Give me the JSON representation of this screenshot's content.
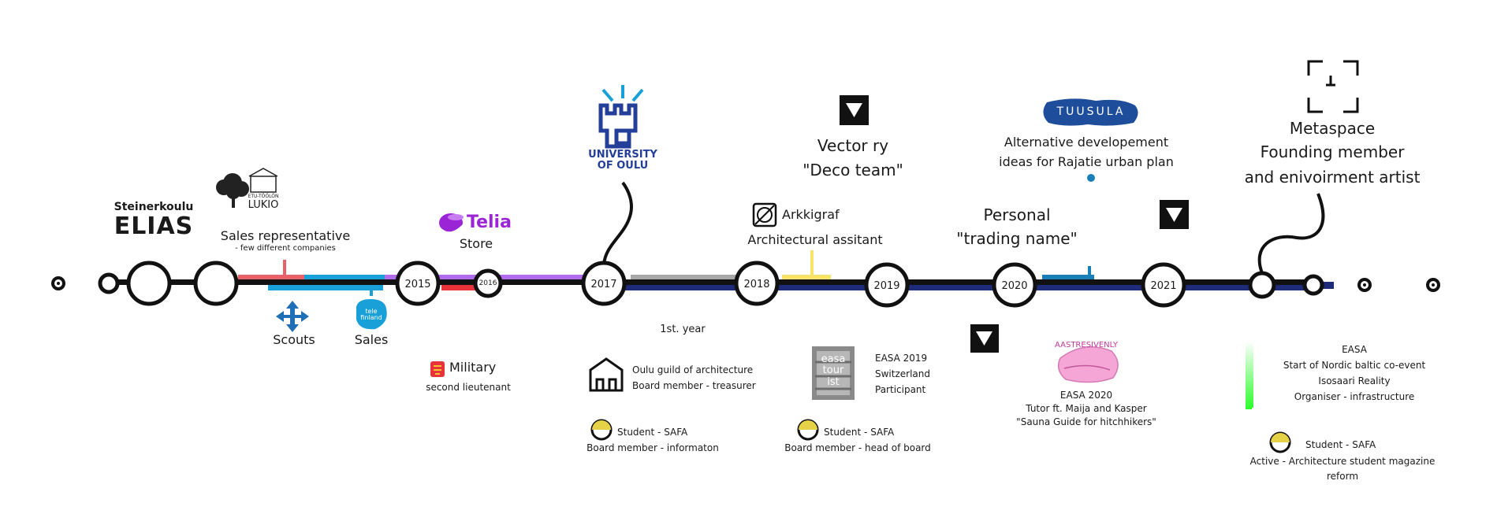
{
  "years": {
    "y2015": "2015",
    "y2016": "2016",
    "y2017": "2017",
    "y2018": "2018",
    "y2019": "2019",
    "y2020": "2020",
    "y2021": "2021"
  },
  "above": {
    "elias_line1": "Steinerkoulu",
    "elias_line2": "ELIAS",
    "lukio_line1": "ETU-TÖÖLÖN",
    "lukio_line2": "LUKIO",
    "sales_rep": "Sales representative",
    "sales_rep_sub": "- few different companies",
    "telia_logo": "Telia",
    "telia_store": "Store",
    "univ_line1": "UNIVERSITY",
    "univ_line2": "OF OULU",
    "vector_line1": "Vector ry",
    "vector_line2": "\"Deco team\"",
    "arkkigraf": "Arkkigraf",
    "arkkigraf_sub": "Architectural assitant",
    "personal_line1": "Personal",
    "personal_line2": "\"trading name\"",
    "tuusula_logo": "TUUSULA",
    "tuusula_line1": "Alternative developement",
    "tuusula_line2": "ideas for Rajatie urban plan",
    "metaspace_line1": "Metaspace",
    "metaspace_line2": "Founding member",
    "metaspace_line3": "and enivoirment artist"
  },
  "below": {
    "scouts": "Scouts",
    "telefinland_logo": "tele finland",
    "sales": "Sales",
    "military": "Military",
    "military_sub": "second lieutenant",
    "first_year": "1st. year",
    "oulu_guild_line1": "Oulu guild of architecture",
    "oulu_guild_line2": "Board member - treasurer",
    "safa1_line1": "Student - SAFA",
    "safa1_line2": "Board member - informaton",
    "easa2019_logo": "easa tour ist",
    "easa2019_line1": "EASA 2019",
    "easa2019_line2": "Switzerland",
    "easa2019_line3": "Participant",
    "safa2_line1": "Student - SAFA",
    "safa2_line2": "Board member - head of board",
    "easa2020_logo": "AASTRESIVENLY",
    "easa2020_line1": "EASA 2020",
    "easa2020_line2": "Tutor ft. Maija and Kasper",
    "easa2020_line3": "\"Sauna Guide for hitchhikers\"",
    "easa_nordic_line1": "EASA",
    "easa_nordic_line2": "Start of Nordic baltic  co-event",
    "easa_nordic_line3": "Isosaari Reality",
    "easa_nordic_line4": "Organiser - infrastructure",
    "safa3_line1": "Student - SAFA",
    "safa3_line2": "Active - Architecture student magazine",
    "safa3_line3": "reform"
  },
  "colors": {
    "timeline": "#111111",
    "navy": "#1d2b78",
    "red": "#e8333a",
    "salmon": "#e8606a",
    "cyan": "#1aa0d8",
    "purple": "#b26bea",
    "gray": "#a8a8a8",
    "yellow": "#f8e36a",
    "teal": "#1a7fb8",
    "univ_blue": "#243f99",
    "scouts_blue": "#1e6fb5",
    "telia_purple": "#9b24d6",
    "tuusula_blue": "#1e4d9c",
    "safa_yellow": "#e6d247",
    "green": "#2fff2f"
  },
  "icons": [
    "down-arrow-icon",
    "scouts-fleur-icon",
    "military-lion-icon",
    "castle-icon",
    "arkkigraf-icon",
    "metaspace-frame-icon",
    "tree-icon",
    "safa-half-circle-icon"
  ]
}
